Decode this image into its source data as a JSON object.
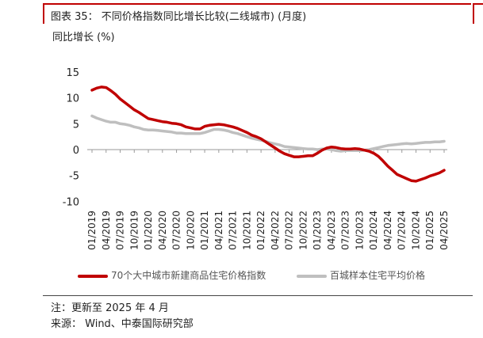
{
  "figure": {
    "title": "图表 35：  不同价格指数同比增长比较(二线城市) (月度)",
    "ylabel": "同比增长 (%)",
    "note": "注：更新至 2025 年 4 月",
    "source": "来源：  Wind、中泰国际研究部"
  },
  "colors": {
    "accent": "#c00000",
    "series_red": "#c00000",
    "series_gray": "#bfbfbf"
  },
  "chart_data": {
    "type": "line",
    "x": [
      "01/2019",
      "02/2019",
      "03/2019",
      "04/2019",
      "05/2019",
      "06/2019",
      "07/2019",
      "08/2019",
      "09/2019",
      "10/2019",
      "11/2019",
      "12/2019",
      "01/2020",
      "02/2020",
      "03/2020",
      "04/2020",
      "05/2020",
      "06/2020",
      "07/2020",
      "08/2020",
      "09/2020",
      "10/2020",
      "11/2020",
      "12/2020",
      "01/2021",
      "02/2021",
      "03/2021",
      "04/2021",
      "05/2021",
      "06/2021",
      "07/2021",
      "08/2021",
      "09/2021",
      "10/2021",
      "11/2021",
      "12/2021",
      "01/2022",
      "02/2022",
      "03/2022",
      "04/2022",
      "05/2022",
      "06/2022",
      "07/2022",
      "08/2022",
      "09/2022",
      "10/2022",
      "11/2022",
      "12/2022",
      "01/2023",
      "02/2023",
      "03/2023",
      "04/2023",
      "05/2023",
      "06/2023",
      "07/2023",
      "08/2023",
      "09/2023",
      "10/2023",
      "11/2023",
      "12/2023",
      "01/2024",
      "02/2024",
      "03/2024",
      "04/2024",
      "05/2024",
      "06/2024",
      "07/2024",
      "08/2024",
      "09/2024",
      "10/2024",
      "11/2024",
      "12/2024",
      "01/2025",
      "02/2025",
      "03/2025",
      "04/2025"
    ],
    "xticklabels": [
      "01/2019",
      "04/2019",
      "07/2019",
      "10/2019",
      "01/2020",
      "04/2020",
      "07/2020",
      "10/2020",
      "01/2021",
      "04/2021",
      "07/2021",
      "10/2021",
      "01/2022",
      "04/2022",
      "07/2022",
      "10/2022",
      "01/2023",
      "04/2023",
      "07/2023",
      "10/2023",
      "01/2024",
      "04/2024",
      "07/2024",
      "10/2024",
      "01/2025",
      "04/2025"
    ],
    "ylim": [
      -10,
      15
    ],
    "yticks": [
      15,
      10,
      5,
      0,
      -5,
      -10
    ],
    "grid": false,
    "legend_position": "bottom",
    "series": [
      {
        "name": "70个大中城市新建商品住宅价格指数",
        "color": "#c00000",
        "values": [
          11.5,
          11.9,
          12.1,
          12.0,
          11.4,
          10.7,
          9.8,
          9.1,
          8.4,
          7.7,
          7.2,
          6.6,
          6.0,
          5.8,
          5.6,
          5.4,
          5.3,
          5.1,
          5.0,
          4.8,
          4.4,
          4.2,
          4.0,
          4.0,
          4.5,
          4.7,
          4.8,
          4.9,
          4.8,
          4.6,
          4.4,
          4.1,
          3.7,
          3.3,
          2.8,
          2.5,
          2.1,
          1.5,
          0.9,
          0.3,
          -0.3,
          -0.8,
          -1.1,
          -1.4,
          -1.4,
          -1.3,
          -1.2,
          -1.2,
          -0.7,
          -0.1,
          0.3,
          0.5,
          0.4,
          0.2,
          0.1,
          0.1,
          0.2,
          0.1,
          -0.1,
          -0.3,
          -0.7,
          -1.3,
          -2.2,
          -3.2,
          -4.0,
          -4.8,
          -5.2,
          -5.6,
          -6.0,
          -6.1,
          -5.8,
          -5.5,
          -5.1,
          -4.8,
          -4.5,
          -4.0
        ]
      },
      {
        "name": "百城样本住宅平均价格",
        "color": "#bfbfbf",
        "values": [
          6.5,
          6.1,
          5.8,
          5.5,
          5.3,
          5.3,
          5.0,
          4.9,
          4.7,
          4.4,
          4.2,
          3.9,
          3.8,
          3.8,
          3.7,
          3.6,
          3.5,
          3.4,
          3.2,
          3.2,
          3.1,
          3.1,
          3.1,
          3.1,
          3.3,
          3.6,
          3.9,
          3.9,
          3.8,
          3.6,
          3.3,
          3.1,
          2.8,
          2.5,
          2.2,
          2.0,
          1.8,
          1.6,
          1.3,
          1.1,
          0.9,
          0.6,
          0.5,
          0.4,
          0.3,
          0.2,
          0.1,
          0.1,
          0.0,
          0.1,
          0.1,
          0.0,
          -0.2,
          -0.3,
          -0.2,
          -0.2,
          -0.2,
          -0.2,
          -0.1,
          0.0,
          0.2,
          0.4,
          0.6,
          0.8,
          0.9,
          1.0,
          1.1,
          1.2,
          1.1,
          1.2,
          1.3,
          1.4,
          1.4,
          1.5,
          1.5,
          1.6
        ]
      }
    ]
  },
  "legend": {
    "items": [
      {
        "label": "70个大中城市新建商品住宅价格指数",
        "color": "#c00000"
      },
      {
        "label": "百城样本住宅平均价格",
        "color": "#bfbfbf"
      }
    ]
  }
}
